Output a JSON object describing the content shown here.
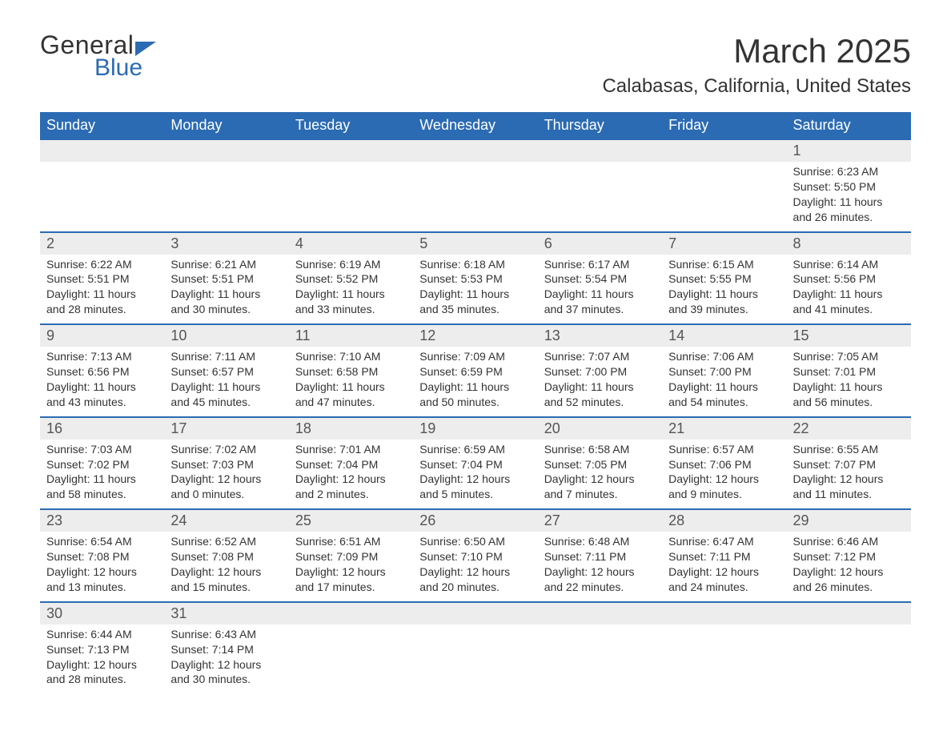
{
  "logo": {
    "general": "General",
    "blue": "Blue"
  },
  "title": "March 2025",
  "location": "Calabasas, California, United States",
  "header_color": "#2b6bb3",
  "daynum_bg": "#ededed",
  "text_color": "#333333",
  "day_headers": [
    "Sunday",
    "Monday",
    "Tuesday",
    "Wednesday",
    "Thursday",
    "Friday",
    "Saturday"
  ],
  "weeks": [
    [
      null,
      null,
      null,
      null,
      null,
      null,
      {
        "n": "1",
        "sunrise": "Sunrise: 6:23 AM",
        "sunset": "Sunset: 5:50 PM",
        "day1": "Daylight: 11 hours",
        "day2": "and 26 minutes."
      }
    ],
    [
      {
        "n": "2",
        "sunrise": "Sunrise: 6:22 AM",
        "sunset": "Sunset: 5:51 PM",
        "day1": "Daylight: 11 hours",
        "day2": "and 28 minutes."
      },
      {
        "n": "3",
        "sunrise": "Sunrise: 6:21 AM",
        "sunset": "Sunset: 5:51 PM",
        "day1": "Daylight: 11 hours",
        "day2": "and 30 minutes."
      },
      {
        "n": "4",
        "sunrise": "Sunrise: 6:19 AM",
        "sunset": "Sunset: 5:52 PM",
        "day1": "Daylight: 11 hours",
        "day2": "and 33 minutes."
      },
      {
        "n": "5",
        "sunrise": "Sunrise: 6:18 AM",
        "sunset": "Sunset: 5:53 PM",
        "day1": "Daylight: 11 hours",
        "day2": "and 35 minutes."
      },
      {
        "n": "6",
        "sunrise": "Sunrise: 6:17 AM",
        "sunset": "Sunset: 5:54 PM",
        "day1": "Daylight: 11 hours",
        "day2": "and 37 minutes."
      },
      {
        "n": "7",
        "sunrise": "Sunrise: 6:15 AM",
        "sunset": "Sunset: 5:55 PM",
        "day1": "Daylight: 11 hours",
        "day2": "and 39 minutes."
      },
      {
        "n": "8",
        "sunrise": "Sunrise: 6:14 AM",
        "sunset": "Sunset: 5:56 PM",
        "day1": "Daylight: 11 hours",
        "day2": "and 41 minutes."
      }
    ],
    [
      {
        "n": "9",
        "sunrise": "Sunrise: 7:13 AM",
        "sunset": "Sunset: 6:56 PM",
        "day1": "Daylight: 11 hours",
        "day2": "and 43 minutes."
      },
      {
        "n": "10",
        "sunrise": "Sunrise: 7:11 AM",
        "sunset": "Sunset: 6:57 PM",
        "day1": "Daylight: 11 hours",
        "day2": "and 45 minutes."
      },
      {
        "n": "11",
        "sunrise": "Sunrise: 7:10 AM",
        "sunset": "Sunset: 6:58 PM",
        "day1": "Daylight: 11 hours",
        "day2": "and 47 minutes."
      },
      {
        "n": "12",
        "sunrise": "Sunrise: 7:09 AM",
        "sunset": "Sunset: 6:59 PM",
        "day1": "Daylight: 11 hours",
        "day2": "and 50 minutes."
      },
      {
        "n": "13",
        "sunrise": "Sunrise: 7:07 AM",
        "sunset": "Sunset: 7:00 PM",
        "day1": "Daylight: 11 hours",
        "day2": "and 52 minutes."
      },
      {
        "n": "14",
        "sunrise": "Sunrise: 7:06 AM",
        "sunset": "Sunset: 7:00 PM",
        "day1": "Daylight: 11 hours",
        "day2": "and 54 minutes."
      },
      {
        "n": "15",
        "sunrise": "Sunrise: 7:05 AM",
        "sunset": "Sunset: 7:01 PM",
        "day1": "Daylight: 11 hours",
        "day2": "and 56 minutes."
      }
    ],
    [
      {
        "n": "16",
        "sunrise": "Sunrise: 7:03 AM",
        "sunset": "Sunset: 7:02 PM",
        "day1": "Daylight: 11 hours",
        "day2": "and 58 minutes."
      },
      {
        "n": "17",
        "sunrise": "Sunrise: 7:02 AM",
        "sunset": "Sunset: 7:03 PM",
        "day1": "Daylight: 12 hours",
        "day2": "and 0 minutes."
      },
      {
        "n": "18",
        "sunrise": "Sunrise: 7:01 AM",
        "sunset": "Sunset: 7:04 PM",
        "day1": "Daylight: 12 hours",
        "day2": "and 2 minutes."
      },
      {
        "n": "19",
        "sunrise": "Sunrise: 6:59 AM",
        "sunset": "Sunset: 7:04 PM",
        "day1": "Daylight: 12 hours",
        "day2": "and 5 minutes."
      },
      {
        "n": "20",
        "sunrise": "Sunrise: 6:58 AM",
        "sunset": "Sunset: 7:05 PM",
        "day1": "Daylight: 12 hours",
        "day2": "and 7 minutes."
      },
      {
        "n": "21",
        "sunrise": "Sunrise: 6:57 AM",
        "sunset": "Sunset: 7:06 PM",
        "day1": "Daylight: 12 hours",
        "day2": "and 9 minutes."
      },
      {
        "n": "22",
        "sunrise": "Sunrise: 6:55 AM",
        "sunset": "Sunset: 7:07 PM",
        "day1": "Daylight: 12 hours",
        "day2": "and 11 minutes."
      }
    ],
    [
      {
        "n": "23",
        "sunrise": "Sunrise: 6:54 AM",
        "sunset": "Sunset: 7:08 PM",
        "day1": "Daylight: 12 hours",
        "day2": "and 13 minutes."
      },
      {
        "n": "24",
        "sunrise": "Sunrise: 6:52 AM",
        "sunset": "Sunset: 7:08 PM",
        "day1": "Daylight: 12 hours",
        "day2": "and 15 minutes."
      },
      {
        "n": "25",
        "sunrise": "Sunrise: 6:51 AM",
        "sunset": "Sunset: 7:09 PM",
        "day1": "Daylight: 12 hours",
        "day2": "and 17 minutes."
      },
      {
        "n": "26",
        "sunrise": "Sunrise: 6:50 AM",
        "sunset": "Sunset: 7:10 PM",
        "day1": "Daylight: 12 hours",
        "day2": "and 20 minutes."
      },
      {
        "n": "27",
        "sunrise": "Sunrise: 6:48 AM",
        "sunset": "Sunset: 7:11 PM",
        "day1": "Daylight: 12 hours",
        "day2": "and 22 minutes."
      },
      {
        "n": "28",
        "sunrise": "Sunrise: 6:47 AM",
        "sunset": "Sunset: 7:11 PM",
        "day1": "Daylight: 12 hours",
        "day2": "and 24 minutes."
      },
      {
        "n": "29",
        "sunrise": "Sunrise: 6:46 AM",
        "sunset": "Sunset: 7:12 PM",
        "day1": "Daylight: 12 hours",
        "day2": "and 26 minutes."
      }
    ],
    [
      {
        "n": "30",
        "sunrise": "Sunrise: 6:44 AM",
        "sunset": "Sunset: 7:13 PM",
        "day1": "Daylight: 12 hours",
        "day2": "and 28 minutes."
      },
      {
        "n": "31",
        "sunrise": "Sunrise: 6:43 AM",
        "sunset": "Sunset: 7:14 PM",
        "day1": "Daylight: 12 hours",
        "day2": "and 30 minutes."
      },
      null,
      null,
      null,
      null,
      null
    ]
  ]
}
